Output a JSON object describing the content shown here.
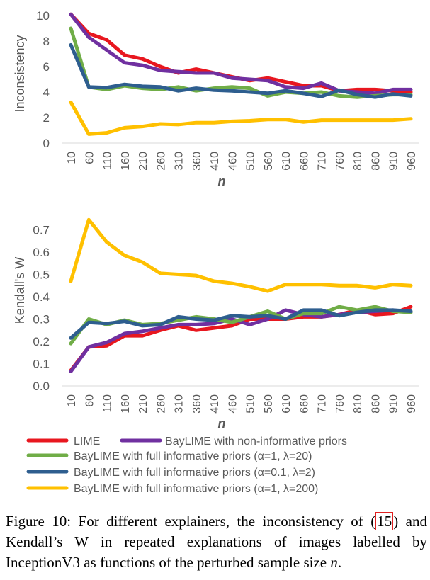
{
  "chart_data": [
    {
      "type": "line",
      "ylabel": "Inconsistency",
      "xlabel": "n",
      "ylim": [
        0,
        10
      ],
      "yticks": [
        0,
        2,
        4,
        6,
        8,
        10
      ],
      "categories": [
        "10",
        "60",
        "110",
        "160",
        "210",
        "260",
        "310",
        "360",
        "410",
        "460",
        "510",
        "560",
        "610",
        "660",
        "710",
        "760",
        "810",
        "860",
        "910",
        "960"
      ],
      "grid": false,
      "series": [
        {
          "name": "LIME",
          "color": "#e8171f",
          "values": [
            10.1,
            8.6,
            8.1,
            6.9,
            6.6,
            6.0,
            5.5,
            5.8,
            5.5,
            5.2,
            4.9,
            5.1,
            4.8,
            4.5,
            4.5,
            4.1,
            4.2,
            4.2,
            4.1,
            4.0
          ]
        },
        {
          "name": "BayLIME with non-informative priors",
          "color": "#7030a0",
          "values": [
            10.1,
            8.3,
            7.3,
            6.3,
            6.1,
            5.7,
            5.6,
            5.5,
            5.5,
            5.1,
            5.0,
            4.9,
            4.4,
            4.3,
            4.7,
            4.1,
            4.0,
            3.9,
            4.2,
            4.2
          ]
        },
        {
          "name": "BayLIME with full informative priors (α=1, λ=20)",
          "color": "#70ad47",
          "values": [
            9.0,
            4.4,
            4.2,
            4.5,
            4.3,
            4.2,
            4.4,
            4.1,
            4.3,
            4.4,
            4.3,
            3.7,
            4.0,
            3.9,
            4.0,
            3.7,
            3.6,
            3.7,
            3.8,
            3.8
          ]
        },
        {
          "name": "BayLIME with full informative priors (α=0.1, λ=2)",
          "color": "#2e5e8f",
          "values": [
            7.7,
            4.4,
            4.35,
            4.6,
            4.45,
            4.4,
            4.1,
            4.3,
            4.15,
            4.1,
            4.0,
            3.9,
            4.1,
            3.9,
            3.65,
            4.15,
            3.8,
            3.6,
            3.85,
            3.7
          ]
        },
        {
          "name": "BayLIME with full informative priors (α=1, λ=200)",
          "color": "#ffc000",
          "values": [
            3.2,
            0.7,
            0.8,
            1.2,
            1.3,
            1.5,
            1.45,
            1.6,
            1.6,
            1.7,
            1.75,
            1.85,
            1.85,
            1.65,
            1.8,
            1.8,
            1.8,
            1.8,
            1.8,
            1.9
          ]
        }
      ]
    },
    {
      "type": "line",
      "ylabel": "Kendall's W",
      "xlabel": "n",
      "ylim": [
        0,
        0.8
      ],
      "yticks": [
        0,
        0.1,
        0.2,
        0.3,
        0.4,
        0.5,
        0.6,
        0.7
      ],
      "categories": [
        "10",
        "60",
        "110",
        "160",
        "210",
        "260",
        "310",
        "360",
        "410",
        "460",
        "510",
        "560",
        "610",
        "660",
        "710",
        "760",
        "810",
        "860",
        "910",
        "960"
      ],
      "grid": false,
      "series": [
        {
          "name": "LIME",
          "color": "#e8171f",
          "values": [
            0.07,
            0.175,
            0.18,
            0.225,
            0.225,
            0.25,
            0.27,
            0.25,
            0.26,
            0.27,
            0.3,
            0.3,
            0.3,
            0.31,
            0.31,
            0.32,
            0.34,
            0.32,
            0.325,
            0.355
          ]
        },
        {
          "name": "BayLIME with non-informative priors",
          "color": "#7030a0",
          "values": [
            0.065,
            0.175,
            0.195,
            0.235,
            0.245,
            0.26,
            0.275,
            0.275,
            0.28,
            0.3,
            0.275,
            0.3,
            0.34,
            0.32,
            0.31,
            0.32,
            0.33,
            0.335,
            0.34,
            0.33
          ]
        },
        {
          "name": "BayLIME with full informative priors (α=1, λ=20)",
          "color": "#70ad47",
          "values": [
            0.19,
            0.3,
            0.275,
            0.295,
            0.275,
            0.28,
            0.295,
            0.31,
            0.3,
            0.285,
            0.31,
            0.335,
            0.3,
            0.325,
            0.325,
            0.355,
            0.34,
            0.355,
            0.335,
            0.33
          ]
        },
        {
          "name": "BayLIME with full informative priors (α=0.1, λ=2)",
          "color": "#2e5e8f",
          "values": [
            0.215,
            0.285,
            0.28,
            0.29,
            0.27,
            0.275,
            0.31,
            0.3,
            0.295,
            0.315,
            0.31,
            0.315,
            0.3,
            0.34,
            0.34,
            0.315,
            0.33,
            0.34,
            0.34,
            0.335
          ]
        },
        {
          "name": "BayLIME with full informative priors (α=1, λ=200)",
          "color": "#ffc000",
          "values": [
            0.47,
            0.745,
            0.645,
            0.585,
            0.555,
            0.505,
            0.5,
            0.495,
            0.47,
            0.46,
            0.445,
            0.425,
            0.455,
            0.455,
            0.455,
            0.45,
            0.45,
            0.44,
            0.455,
            0.45
          ]
        }
      ]
    }
  ],
  "legend": [
    {
      "label": "LIME",
      "color": "#e8171f"
    },
    {
      "label": "BayLIME with non-informative priors",
      "color": "#7030a0"
    },
    {
      "label": "BayLIME with full informative priors (α=1, λ=20)",
      "color": "#70ad47"
    },
    {
      "label": "BayLIME with full informative priors (α=0.1, λ=2)",
      "color": "#2e5e8f"
    },
    {
      "label": "BayLIME with full informative priors (α=1, λ=200)",
      "color": "#ffc000"
    }
  ],
  "caption": {
    "prefix": "Figure 10: For different explainers, the inconsistency of (",
    "ref": "15",
    "middle": ") and Kendall’s W in repeated explanations of images labelled by InceptionV3 as functions of the perturbed sample size ",
    "var": "n",
    "suffix": "."
  }
}
